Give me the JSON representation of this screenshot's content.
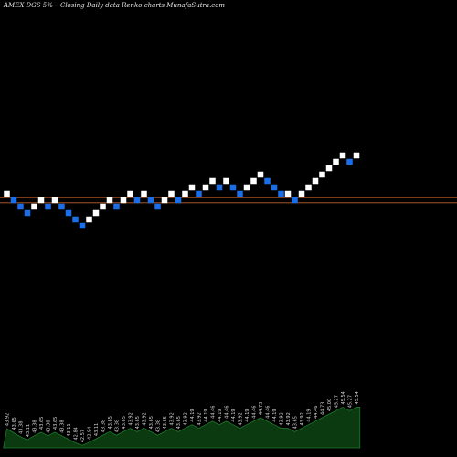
{
  "header": {
    "text": "AMEX  DGS  5%~  Closing Daily data  Renko  charts MunafaSutra.com"
  },
  "colors": {
    "background": "#000000",
    "up_brick": "#ffffff",
    "down_brick": "#1a6fe8",
    "reference_line": "#c0602a",
    "volume_fill": "#0b3a10",
    "volume_line": "#1e7a2a",
    "value_label": "#d8d8d8"
  },
  "chart_data": {
    "type": "renko",
    "title": "AMEX  DGS  5%~  Closing Daily data  Renko  charts MunafaSutra.com",
    "bricks": [
      {
        "dir": "up",
        "level": 0
      },
      {
        "dir": "down",
        "level": -1
      },
      {
        "dir": "down",
        "level": -2
      },
      {
        "dir": "down",
        "level": -3
      },
      {
        "dir": "up",
        "level": -2
      },
      {
        "dir": "up",
        "level": -1
      },
      {
        "dir": "down",
        "level": -2
      },
      {
        "dir": "up",
        "level": -1
      },
      {
        "dir": "down",
        "level": -2
      },
      {
        "dir": "down",
        "level": -3
      },
      {
        "dir": "down",
        "level": -4
      },
      {
        "dir": "down",
        "level": -5
      },
      {
        "dir": "up",
        "level": -4
      },
      {
        "dir": "up",
        "level": -3
      },
      {
        "dir": "up",
        "level": -2
      },
      {
        "dir": "up",
        "level": -1
      },
      {
        "dir": "down",
        "level": -2
      },
      {
        "dir": "up",
        "level": -1
      },
      {
        "dir": "up",
        "level": 0
      },
      {
        "dir": "down",
        "level": -1
      },
      {
        "dir": "up",
        "level": 0
      },
      {
        "dir": "down",
        "level": -1
      },
      {
        "dir": "down",
        "level": -2
      },
      {
        "dir": "up",
        "level": -1
      },
      {
        "dir": "up",
        "level": 0
      },
      {
        "dir": "down",
        "level": -1
      },
      {
        "dir": "up",
        "level": 0
      },
      {
        "dir": "up",
        "level": 1
      },
      {
        "dir": "down",
        "level": 0
      },
      {
        "dir": "up",
        "level": 1
      },
      {
        "dir": "up",
        "level": 2
      },
      {
        "dir": "down",
        "level": 1
      },
      {
        "dir": "up",
        "level": 2
      },
      {
        "dir": "down",
        "level": 1
      },
      {
        "dir": "down",
        "level": 0
      },
      {
        "dir": "up",
        "level": 1
      },
      {
        "dir": "up",
        "level": 2
      },
      {
        "dir": "up",
        "level": 3
      },
      {
        "dir": "down",
        "level": 2
      },
      {
        "dir": "down",
        "level": 1
      },
      {
        "dir": "down",
        "level": 0
      },
      {
        "dir": "up",
        "level": 0
      },
      {
        "dir": "down",
        "level": -1
      },
      {
        "dir": "up",
        "level": 0
      },
      {
        "dir": "up",
        "level": 1
      },
      {
        "dir": "up",
        "level": 2
      },
      {
        "dir": "up",
        "level": 3
      },
      {
        "dir": "up",
        "level": 4
      },
      {
        "dir": "up",
        "level": 5
      },
      {
        "dir": "up",
        "level": 6
      },
      {
        "dir": "down",
        "level": 5
      },
      {
        "dir": "up",
        "level": 6
      }
    ],
    "reference_lines": [
      {
        "level": -0.6
      },
      {
        "level": -1.4
      }
    ],
    "volume": [
      {
        "value": 38,
        "label": "43.92"
      },
      {
        "value": 30,
        "label": "43.65"
      },
      {
        "value": 22,
        "label": "43.38"
      },
      {
        "value": 16,
        "label": "43.11"
      },
      {
        "value": 24,
        "label": "43.38"
      },
      {
        "value": 31,
        "label": "43.65"
      },
      {
        "value": 24,
        "label": "43.38"
      },
      {
        "value": 31,
        "label": "43.65"
      },
      {
        "value": 24,
        "label": "43.38"
      },
      {
        "value": 17,
        "label": "43.11"
      },
      {
        "value": 10,
        "label": "42.84"
      },
      {
        "value": 5,
        "label": "42.57"
      },
      {
        "value": 11,
        "label": "42.84"
      },
      {
        "value": 18,
        "label": "43.11"
      },
      {
        "value": 25,
        "label": "43.38"
      },
      {
        "value": 32,
        "label": "43.65"
      },
      {
        "value": 25,
        "label": "43.38"
      },
      {
        "value": 32,
        "label": "43.65"
      },
      {
        "value": 39,
        "label": "43.92"
      },
      {
        "value": 32,
        "label": "43.65"
      },
      {
        "value": 39,
        "label": "43.92"
      },
      {
        "value": 32,
        "label": "43.65"
      },
      {
        "value": 25,
        "label": "43.38"
      },
      {
        "value": 32,
        "label": "43.65"
      },
      {
        "value": 39,
        "label": "43.92"
      },
      {
        "value": 32,
        "label": "43.65"
      },
      {
        "value": 39,
        "label": "43.92"
      },
      {
        "value": 46,
        "label": "44.19"
      },
      {
        "value": 39,
        "label": "43.92"
      },
      {
        "value": 46,
        "label": "44.19"
      },
      {
        "value": 53,
        "label": "44.46"
      },
      {
        "value": 46,
        "label": "44.19"
      },
      {
        "value": 53,
        "label": "44.46"
      },
      {
        "value": 46,
        "label": "44.19"
      },
      {
        "value": 39,
        "label": "43.92"
      },
      {
        "value": 46,
        "label": "44.19"
      },
      {
        "value": 53,
        "label": "44.46"
      },
      {
        "value": 60,
        "label": "44.73"
      },
      {
        "value": 53,
        "label": "44.46"
      },
      {
        "value": 46,
        "label": "44.19"
      },
      {
        "value": 39,
        "label": "43.92"
      },
      {
        "value": 39,
        "label": "43.92"
      },
      {
        "value": 32,
        "label": "43.65"
      },
      {
        "value": 39,
        "label": "43.92"
      },
      {
        "value": 46,
        "label": "44.19"
      },
      {
        "value": 53,
        "label": "44.46"
      },
      {
        "value": 60,
        "label": "44.73"
      },
      {
        "value": 67,
        "label": "45.00"
      },
      {
        "value": 74,
        "label": "45.27"
      },
      {
        "value": 81,
        "label": "45.54"
      },
      {
        "value": 74,
        "label": "45.27"
      },
      {
        "value": 81,
        "label": "45.54"
      }
    ]
  }
}
